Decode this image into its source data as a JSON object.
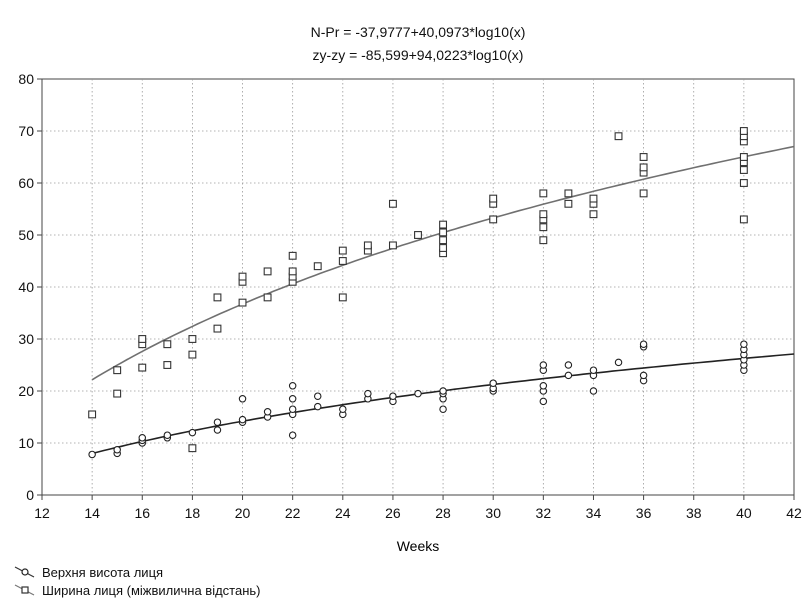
{
  "chart_data": {
    "type": "scatter",
    "title_lines": [
      "N-Pr = -37,9777+40,0973*log10(x)",
      "zy-zy = -85,599+94,0223*log10(x)"
    ],
    "xlabel": "Weeks",
    "ylabel": "",
    "xlim": [
      12,
      42
    ],
    "ylim": [
      0,
      80
    ],
    "x_ticks": [
      12,
      14,
      16,
      18,
      20,
      22,
      24,
      26,
      28,
      30,
      32,
      34,
      36,
      38,
      40,
      42
    ],
    "y_ticks": [
      0,
      10,
      20,
      30,
      40,
      50,
      60,
      70,
      80
    ],
    "grid": true,
    "legend_position": "bottom-left",
    "series": [
      {
        "name": "Верхня висота лиця",
        "marker": "circle",
        "fit": {
          "intercept": -37.9777,
          "slope": 40.0973,
          "transform": "log10"
        },
        "points": [
          [
            14,
            7.8
          ],
          [
            15,
            8
          ],
          [
            15,
            8.7
          ],
          [
            16,
            10
          ],
          [
            16,
            10.5
          ],
          [
            16,
            11
          ],
          [
            17,
            11
          ],
          [
            17,
            11.5
          ],
          [
            18,
            12
          ],
          [
            19,
            12.5
          ],
          [
            19,
            14
          ],
          [
            20,
            14
          ],
          [
            20,
            14.5
          ],
          [
            20,
            18.5
          ],
          [
            21,
            15
          ],
          [
            21,
            16
          ],
          [
            22,
            11.5
          ],
          [
            22,
            15.5
          ],
          [
            22,
            16.5
          ],
          [
            22,
            18.5
          ],
          [
            22,
            21
          ],
          [
            23,
            17
          ],
          [
            23,
            19
          ],
          [
            24,
            15.5
          ],
          [
            24,
            16.5
          ],
          [
            25,
            18.5
          ],
          [
            25,
            19.5
          ],
          [
            26,
            18
          ],
          [
            26,
            19
          ],
          [
            27,
            19.5
          ],
          [
            28,
            16.5
          ],
          [
            28,
            18.5
          ],
          [
            28,
            19.5
          ],
          [
            28,
            20
          ],
          [
            30,
            20
          ],
          [
            30,
            20.5
          ],
          [
            30,
            21.5
          ],
          [
            32,
            18
          ],
          [
            32,
            20
          ],
          [
            32,
            21
          ],
          [
            32,
            24
          ],
          [
            32,
            25
          ],
          [
            33,
            23
          ],
          [
            33,
            25
          ],
          [
            34,
            20
          ],
          [
            34,
            23
          ],
          [
            34,
            24
          ],
          [
            35,
            25.5
          ],
          [
            36,
            22
          ],
          [
            36,
            23
          ],
          [
            36,
            28.5
          ],
          [
            36,
            29
          ],
          [
            40,
            24
          ],
          [
            40,
            25
          ],
          [
            40,
            26
          ],
          [
            40,
            27
          ],
          [
            40,
            28
          ],
          [
            40,
            29
          ]
        ]
      },
      {
        "name": "Ширина лиця (міжвилична відстань)",
        "marker": "square",
        "fit": {
          "intercept": -85.599,
          "slope": 94.0223,
          "transform": "log10"
        },
        "points": [
          [
            14,
            15.5
          ],
          [
            15,
            19.5
          ],
          [
            15,
            24
          ],
          [
            16,
            24.5
          ],
          [
            16,
            29
          ],
          [
            16,
            30
          ],
          [
            17,
            25
          ],
          [
            17,
            29
          ],
          [
            18,
            27
          ],
          [
            18,
            30
          ],
          [
            18,
            9
          ],
          [
            19,
            32
          ],
          [
            19,
            38
          ],
          [
            20,
            37
          ],
          [
            20,
            41
          ],
          [
            20,
            42
          ],
          [
            21,
            38
          ],
          [
            21,
            43
          ],
          [
            22,
            41
          ],
          [
            22,
            42
          ],
          [
            22,
            43
          ],
          [
            22,
            46
          ],
          [
            23,
            44
          ],
          [
            24,
            38
          ],
          [
            24,
            45
          ],
          [
            24,
            47
          ],
          [
            25,
            47
          ],
          [
            25,
            48
          ],
          [
            26,
            48
          ],
          [
            26,
            56
          ],
          [
            27,
            50
          ],
          [
            28,
            46.5
          ],
          [
            28,
            47.5
          ],
          [
            28,
            49
          ],
          [
            28,
            50.5
          ],
          [
            28,
            52
          ],
          [
            30,
            53
          ],
          [
            30,
            56
          ],
          [
            30,
            57
          ],
          [
            32,
            49
          ],
          [
            32,
            51.5
          ],
          [
            32,
            53
          ],
          [
            32,
            54
          ],
          [
            32,
            58
          ],
          [
            33,
            56
          ],
          [
            33,
            58
          ],
          [
            34,
            54
          ],
          [
            34,
            56
          ],
          [
            34,
            57
          ],
          [
            35,
            69
          ],
          [
            36,
            58
          ],
          [
            36,
            62
          ],
          [
            36,
            63
          ],
          [
            36,
            65
          ],
          [
            40,
            53
          ],
          [
            40,
            60
          ],
          [
            40,
            62.5
          ],
          [
            40,
            64
          ],
          [
            40,
            65
          ],
          [
            40,
            68
          ],
          [
            40,
            69
          ],
          [
            40,
            70
          ]
        ]
      }
    ]
  }
}
